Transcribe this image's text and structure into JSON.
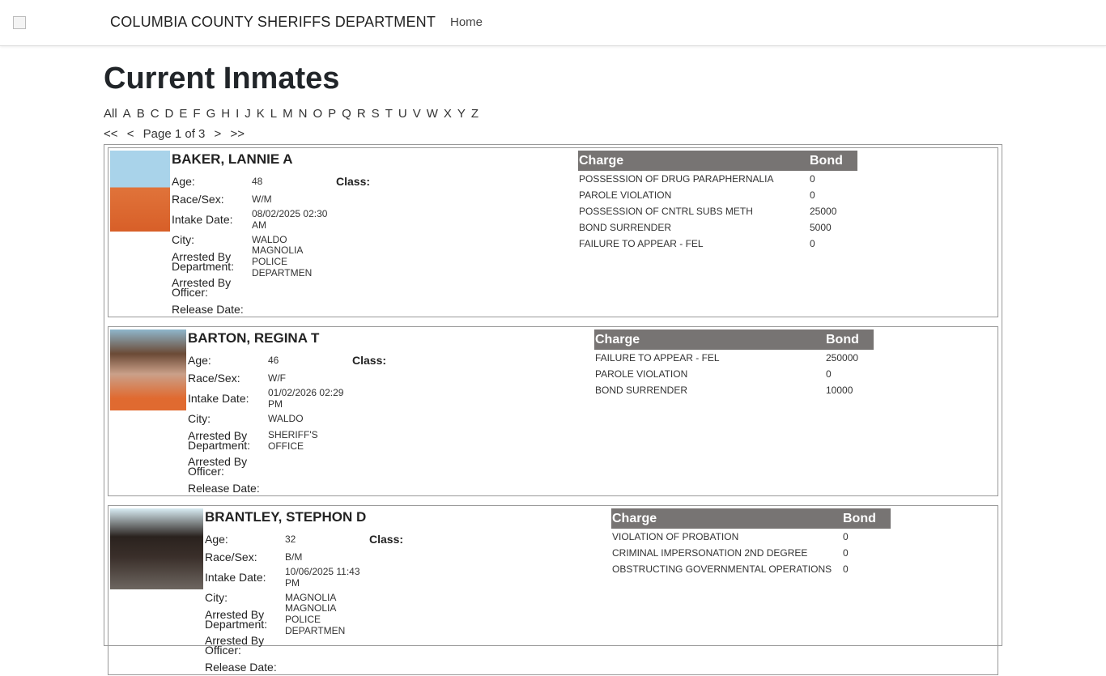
{
  "header": {
    "brand": "COLUMBIA COUNTY SHERIFFS DEPARTMENT",
    "home": "Home"
  },
  "page_title": "Current Inmates",
  "alphabet": [
    "All",
    "A",
    "B",
    "C",
    "D",
    "E",
    "F",
    "G",
    "H",
    "I",
    "J",
    "K",
    "L",
    "M",
    "N",
    "O",
    "P",
    "Q",
    "R",
    "S",
    "T",
    "U",
    "V",
    "W",
    "X",
    "Y",
    "Z"
  ],
  "pager": {
    "first": "<<",
    "prev": "<",
    "label": "Page 1 of 3",
    "next": ">",
    "last": ">>"
  },
  "labels": {
    "age": "Age:",
    "class": "Class:",
    "race_sex": "Race/Sex:",
    "intake": "Intake Date:",
    "city": "City:",
    "dept": "Arrested By Department:",
    "officer": "Arrested By Officer:",
    "release": "Release Date:",
    "charge": "Charge",
    "bond": "Bond"
  },
  "inmates": [
    {
      "name": "BAKER, LANNIE A",
      "age": "48",
      "class": "",
      "race_sex": "W/M",
      "intake": "08/02/2025 02:30 AM",
      "city": "WALDO",
      "dept": "MAGNOLIA POLICE DEPARTMEN",
      "officer": "",
      "release": "",
      "charges": [
        [
          "POSSESSION OF DRUG PARAPHERNALIA",
          "0"
        ],
        [
          "PAROLE VIOLATION",
          "0"
        ],
        [
          "POSSESSION OF CNTRL SUBS METH",
          "25000"
        ],
        [
          "BOND SURRENDER",
          "5000"
        ],
        [
          "FAILURE TO APPEAR - FEL",
          "0"
        ]
      ]
    },
    {
      "name": "BARTON, REGINA T",
      "age": "46",
      "class": "",
      "race_sex": "W/F",
      "intake": "01/02/2026 02:29 PM",
      "city": "WALDO",
      "dept": "SHERIFF'S OFFICE",
      "officer": "",
      "release": "",
      "charges": [
        [
          "FAILURE TO APPEAR - FEL",
          "250000"
        ],
        [
          "PAROLE VIOLATION",
          "0"
        ],
        [
          "BOND SURRENDER",
          "10000"
        ]
      ]
    },
    {
      "name": "BRANTLEY, STEPHON D",
      "age": "32",
      "class": "",
      "race_sex": "B/M",
      "intake": "10/06/2025 11:43 PM",
      "city": "MAGNOLIA",
      "dept": "MAGNOLIA POLICE DEPARTMEN",
      "officer": "",
      "release": "",
      "charges": [
        [
          "VIOLATION OF PROBATION",
          "0"
        ],
        [
          "CRIMINAL IMPERSONATION 2ND DEGREE",
          "0"
        ],
        [
          "OBSTRUCTING GOVERNMENTAL OPERATIONS",
          "0"
        ]
      ]
    }
  ]
}
